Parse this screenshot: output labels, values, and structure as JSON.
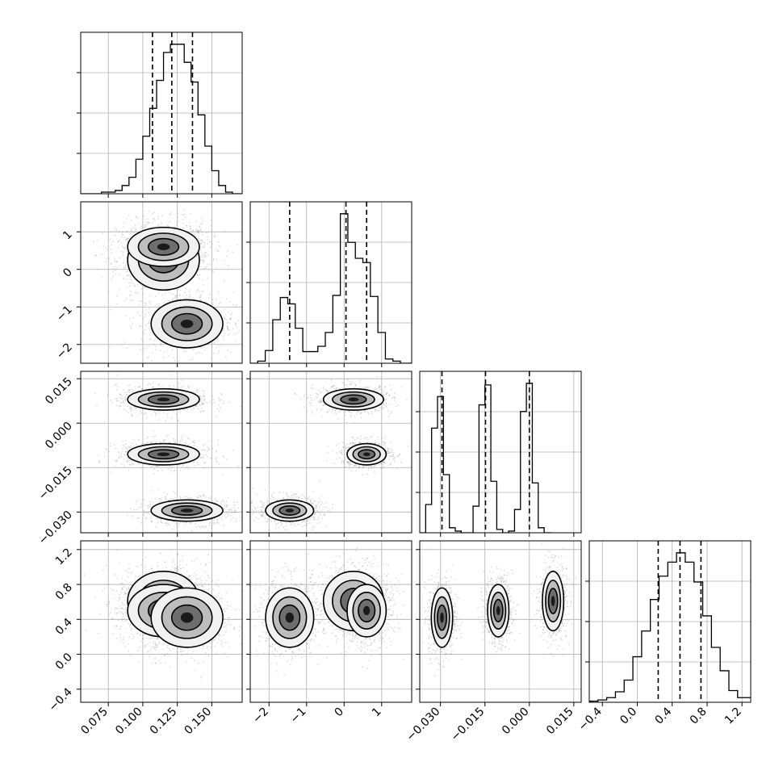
{
  "chart_data": {
    "type": "corner",
    "title": "",
    "grid": true,
    "parameters": [
      {
        "label": "",
        "range": [
          0.055,
          0.172
        ],
        "ticks": [
          0.075,
          0.1,
          0.125,
          0.15
        ],
        "tick_labels": [
          "0.075",
          "0.100",
          "0.125",
          "0.150"
        ],
        "quantiles": [
          0.107,
          0.121,
          0.136
        ],
        "histogram": {
          "bin_edges": [
            0.055,
            0.06,
            0.065,
            0.07,
            0.075,
            0.08,
            0.085,
            0.09,
            0.095,
            0.1,
            0.105,
            0.11,
            0.115,
            0.12,
            0.125,
            0.13,
            0.135,
            0.14,
            0.145,
            0.15,
            0.155,
            0.16,
            0.165,
            0.172
          ],
          "counts": [
            0,
            0,
            0,
            1,
            1,
            2,
            5,
            10,
            21,
            35,
            52,
            69,
            86,
            91,
            91,
            80,
            68,
            48,
            29,
            14,
            5,
            1,
            0
          ]
        }
      },
      {
        "label": "",
        "range": [
          -2.5,
          1.8
        ],
        "ticks": [
          -2,
          -1,
          0,
          1
        ],
        "tick_labels": [
          "−2",
          "−1",
          "0",
          "1"
        ],
        "quantiles": [
          -1.45,
          0.05,
          0.6
        ],
        "histogram": {
          "bin_edges": [
            -2.5,
            -2.3,
            -2.1,
            -1.9,
            -1.7,
            -1.5,
            -1.3,
            -1.1,
            -0.9,
            -0.7,
            -0.5,
            -0.3,
            -0.1,
            0.1,
            0.3,
            0.5,
            0.7,
            0.9,
            1.1,
            1.3,
            1.5,
            1.8
          ],
          "counts": [
            0,
            2,
            12,
            41,
            62,
            56,
            33,
            11,
            11,
            16,
            29,
            64,
            141,
            114,
            99,
            95,
            63,
            29,
            4,
            2,
            0
          ]
        }
      },
      {
        "label": "",
        "range": [
          -0.037,
          0.0175
        ],
        "ticks": [
          -0.03,
          -0.015,
          0.0,
          0.015
        ],
        "tick_labels": [
          "−0.030",
          "−0.015",
          "0.000",
          "0.015"
        ],
        "quantiles": [
          -0.0295,
          -0.0148,
          0.0
        ],
        "histogram": {
          "bin_edges": [
            -0.037,
            -0.035,
            -0.033,
            -0.031,
            -0.029,
            -0.027,
            -0.025,
            -0.023,
            -0.021,
            -0.019,
            -0.017,
            -0.015,
            -0.013,
            -0.011,
            -0.009,
            -0.007,
            -0.005,
            -0.003,
            -0.001,
            0.001,
            0.003,
            0.005,
            0.0075
          ],
          "counts": [
            0,
            17,
            63,
            82,
            35,
            3,
            1,
            0,
            0,
            16,
            77,
            89,
            31,
            2,
            0,
            1,
            14,
            73,
            90,
            30,
            3,
            0
          ]
        }
      },
      {
        "label": "",
        "range": [
          -0.55,
          1.3
        ],
        "ticks": [
          -0.4,
          0.0,
          0.4,
          0.8,
          1.2
        ],
        "tick_labels": [
          "−0.4",
          "0.0",
          "0.4",
          "0.8",
          "1.2"
        ],
        "quantiles": [
          0.24,
          0.49,
          0.73
        ],
        "histogram": {
          "bin_edges": [
            -0.55,
            -0.45,
            -0.35,
            -0.25,
            -0.15,
            -0.05,
            0.05,
            0.15,
            0.25,
            0.35,
            0.45,
            0.55,
            0.65,
            0.75,
            0.85,
            0.95,
            1.05,
            1.15,
            1.3
          ],
          "counts": [
            1,
            2,
            4,
            9,
            19,
            39,
            61,
            88,
            108,
            120,
            128,
            120,
            103,
            74,
            47,
            27,
            10,
            4
          ]
        }
      }
    ],
    "clusters": [
      {
        "means": [
          0.115,
          0.25,
          0.008,
          0.61
        ],
        "sds": [
          0.013,
          0.4,
          0.0018,
          0.17
        ]
      },
      {
        "means": [
          0.115,
          0.6,
          -0.0105,
          0.5
        ],
        "sds": [
          0.013,
          0.26,
          0.0018,
          0.15
        ]
      },
      {
        "means": [
          0.132,
          -1.45,
          -0.0295,
          0.42
        ],
        "sds": [
          0.013,
          0.32,
          0.0018,
          0.17
        ]
      }
    ],
    "contour_levels": 3
  }
}
